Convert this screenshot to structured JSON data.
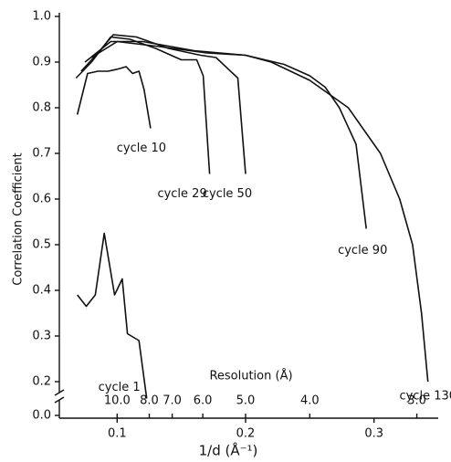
{
  "chart_data": {
    "type": "line",
    "y_label": "Correlation Coefficient",
    "x_label": "1/d (Å⁻¹)",
    "secondary_x_label": "Resolution (Å)",
    "xlim": [
      0.055,
      0.35
    ],
    "xticks": [
      0.1,
      0.2,
      0.3
    ],
    "resolution_ticks": [
      {
        "value": 10,
        "label": "10.0"
      },
      {
        "value": 8,
        "label": "8.0"
      },
      {
        "value": 7,
        "label": "7.0"
      },
      {
        "value": 6,
        "label": "6.0"
      },
      {
        "value": 5,
        "label": "5.0"
      },
      {
        "value": 4,
        "label": "4.0"
      },
      {
        "value": 3,
        "label": "3.0"
      }
    ],
    "ylim": [
      0,
      1
    ],
    "yticks": [
      {
        "value": 0,
        "label": "0.0"
      },
      0.2,
      0.3,
      0.4,
      0.5,
      0.6,
      0.7,
      0.8,
      0.9,
      {
        "value": 1,
        "label": "1.0"
      }
    ],
    "axis_break": true,
    "grid": false,
    "series": [
      {
        "name": "cycle 1",
        "color": "#111111",
        "x": [
          0.069,
          0.076,
          0.083,
          0.09,
          0.098,
          0.104,
          0.108,
          0.117,
          0.123
        ],
        "values": [
          0.39,
          0.365,
          0.39,
          0.525,
          0.39,
          0.425,
          0.305,
          0.29,
          0.195
        ]
      },
      {
        "name": "cycle 10",
        "color": "#111111",
        "x": [
          0.069,
          0.077,
          0.085,
          0.093,
          0.101,
          0.107,
          0.112,
          0.117,
          0.121,
          0.126
        ],
        "values": [
          0.785,
          0.875,
          0.88,
          0.88,
          0.885,
          0.89,
          0.875,
          0.88,
          0.84,
          0.755
        ]
      },
      {
        "name": "cycle 29",
        "color": "#111111",
        "x": [
          0.068,
          0.08,
          0.095,
          0.11,
          0.13,
          0.15,
          0.162,
          0.167,
          0.172
        ],
        "values": [
          0.865,
          0.9,
          0.955,
          0.95,
          0.93,
          0.905,
          0.905,
          0.87,
          0.655
        ]
      },
      {
        "name": "cycle 50",
        "color": "#111111",
        "x": [
          0.072,
          0.085,
          0.097,
          0.115,
          0.14,
          0.165,
          0.177,
          0.194,
          0.2
        ],
        "values": [
          0.88,
          0.92,
          0.96,
          0.955,
          0.93,
          0.915,
          0.91,
          0.865,
          0.655
        ]
      },
      {
        "name": "cycle 90",
        "color": "#111111",
        "x": [
          0.075,
          0.095,
          0.12,
          0.16,
          0.2,
          0.23,
          0.25,
          0.262,
          0.273,
          0.286,
          0.294
        ],
        "values": [
          0.9,
          0.945,
          0.945,
          0.925,
          0.915,
          0.895,
          0.87,
          0.845,
          0.8,
          0.72,
          0.535
        ]
      },
      {
        "name": "cycle 130",
        "color": "#111111",
        "x": [
          0.08,
          0.1,
          0.13,
          0.17,
          0.2,
          0.22,
          0.25,
          0.28,
          0.305,
          0.32,
          0.33,
          0.337,
          0.342
        ],
        "values": [
          0.91,
          0.945,
          0.935,
          0.92,
          0.915,
          0.9,
          0.86,
          0.8,
          0.7,
          0.6,
          0.5,
          0.35,
          0.2
        ]
      }
    ]
  }
}
